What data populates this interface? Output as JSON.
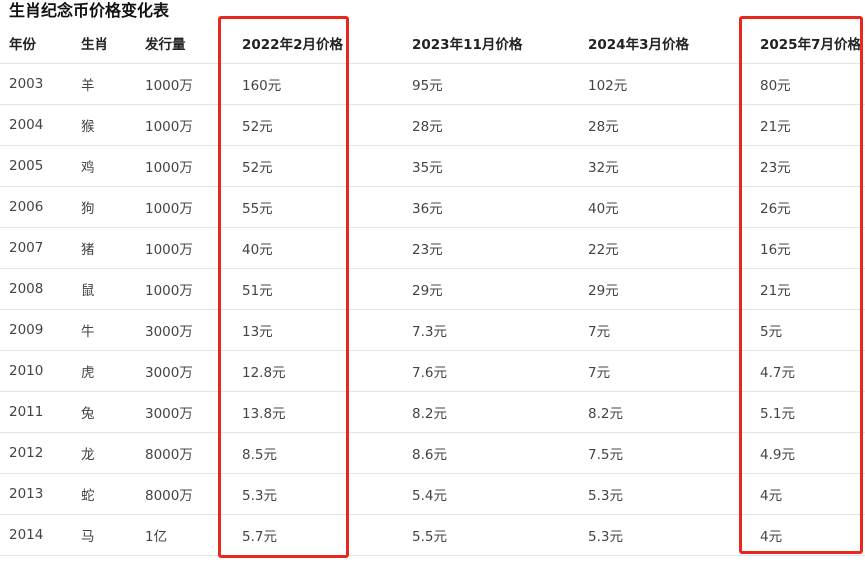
{
  "title": "生肖纪念币价格变化表",
  "headers": [
    "年份",
    "生肖",
    "发行量",
    "2022年2月价格",
    "2023年11月价格",
    "2024年3月价格",
    "2025年7月价格"
  ],
  "rows": [
    [
      "2003",
      "羊",
      "1000万",
      "160元",
      "95元",
      "102元",
      "80元"
    ],
    [
      "2004",
      "猴",
      "1000万",
      "52元",
      "28元",
      "28元",
      "21元"
    ],
    [
      "2005",
      "鸡",
      "1000万",
      "52元",
      "35元",
      "32元",
      "23元"
    ],
    [
      "2006",
      "狗",
      "1000万",
      "55元",
      "36元",
      "40元",
      "26元"
    ],
    [
      "2007",
      "猪",
      "1000万",
      "40元",
      "23元",
      "22元",
      "16元"
    ],
    [
      "2008",
      "鼠",
      "1000万",
      "51元",
      "29元",
      "29元",
      "21元"
    ],
    [
      "2009",
      "牛",
      "3000万",
      "13元",
      "7.3元",
      "7元",
      "5元"
    ],
    [
      "2010",
      "虎",
      "3000万",
      "12.8元",
      "7.6元",
      "7元",
      "4.7元"
    ],
    [
      "2011",
      "兔",
      "3000万",
      "13.8元",
      "8.2元",
      "8.2元",
      "5.1元"
    ],
    [
      "2012",
      "龙",
      "8000万",
      "8.5元",
      "8.6元",
      "7.5元",
      "4.9元"
    ],
    [
      "2013",
      "蛇",
      "8000万",
      "5.3元",
      "5.4元",
      "5.3元",
      "4元"
    ],
    [
      "2014",
      "马",
      "1亿",
      "5.7元",
      "5.5元",
      "5.3元",
      "4元"
    ]
  ],
  "colors": {
    "highlight": "#e8271f",
    "border": "#e4e4e4"
  }
}
